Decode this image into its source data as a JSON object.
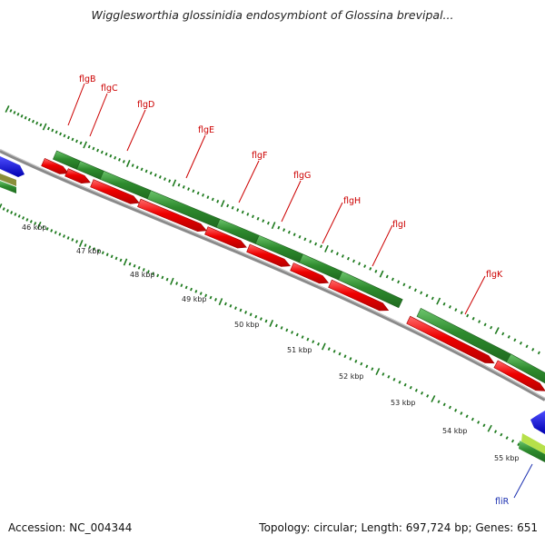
{
  "title": "Wigglesworthia glossinidia endosymbiont of Glossina brevipal...",
  "footer": {
    "accession": "Accession: NC_004344",
    "summary": "Topology: circular; Length: 697,724 bp; Genes: 651"
  },
  "colors": {
    "forward_gene": "#2e8b2e",
    "forward_gene_light": "#58b558",
    "reverse_cds": "#ee0000",
    "reverse_cds_light": "#ff5a5a",
    "backbone": "#8a8a8a",
    "tick": "#1e7a1e",
    "label_red": "#cc0000",
    "label_blue": "#1a2fb0",
    "blue_gene": "#0000dd",
    "yellow_gene": "#d4d400"
  },
  "kbp_labels": [
    "46 kbp",
    "47 kbp",
    "48 kbp",
    "49 kbp",
    "50 kbp",
    "51 kbp",
    "52 kbp",
    "53 kbp",
    "54 kbp",
    "55 kbp"
  ],
  "genes": [
    {
      "name": "flgB",
      "color": "red"
    },
    {
      "name": "flgC",
      "color": "red"
    },
    {
      "name": "flgD",
      "color": "red"
    },
    {
      "name": "flgE",
      "color": "red"
    },
    {
      "name": "flgF",
      "color": "red"
    },
    {
      "name": "flgG",
      "color": "red"
    },
    {
      "name": "flgH",
      "color": "red"
    },
    {
      "name": "flgI",
      "color": "red"
    },
    {
      "name": "flgK",
      "color": "red"
    },
    {
      "name": "fliR",
      "color": "blue"
    }
  ]
}
